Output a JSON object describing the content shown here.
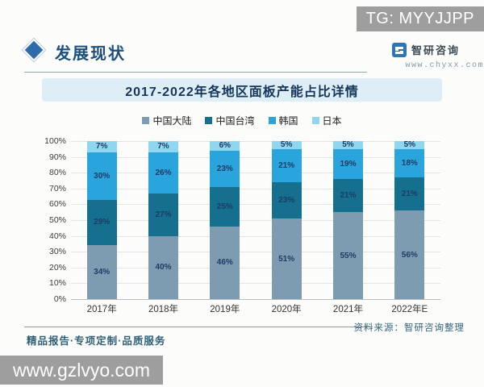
{
  "overlay": {
    "tg_badge": "TG: MYYJJPP",
    "watermark_site": "www.gzlvyo.com"
  },
  "header": {
    "section_title": "发展现状",
    "brand_name": "智研咨询",
    "brand_url": "www.chyxx.com"
  },
  "chart_data": {
    "type": "bar",
    "stacked": true,
    "title": "2017-2022年各地区面板产能占比详情",
    "categories": [
      "2017年",
      "2018年",
      "2019年",
      "2020年",
      "2021年",
      "2022年E"
    ],
    "series": [
      {
        "name": "中国大陆",
        "color": "#7d9cb2",
        "values": [
          34,
          40,
          46,
          51,
          55,
          56
        ]
      },
      {
        "name": "中国台湾",
        "color": "#156f8f",
        "values": [
          29,
          27,
          25,
          23,
          21,
          21
        ]
      },
      {
        "name": "韩国",
        "color": "#2aa4dc",
        "values": [
          30,
          26,
          23,
          21,
          19,
          18
        ]
      },
      {
        "name": "日本",
        "color": "#8fd6f0",
        "values": [
          7,
          7,
          6,
          5,
          5,
          5
        ]
      }
    ],
    "xlabel": "",
    "ylabel": "",
    "ylim": [
      0,
      100
    ],
    "ytick_step": 10,
    "ytick_suffix": "%",
    "value_suffix": "%",
    "grid": true,
    "legend_position": "top"
  },
  "footer": {
    "source_label": "资料来源：智研咨询整理",
    "tagline": "精品报告·专项定制·品质服务"
  },
  "colors": {
    "accent_blue": "#2f6bab",
    "banner_bg": "#ddeef7",
    "title_text": "#16365c",
    "badge_gray": "#9e9e9e"
  }
}
